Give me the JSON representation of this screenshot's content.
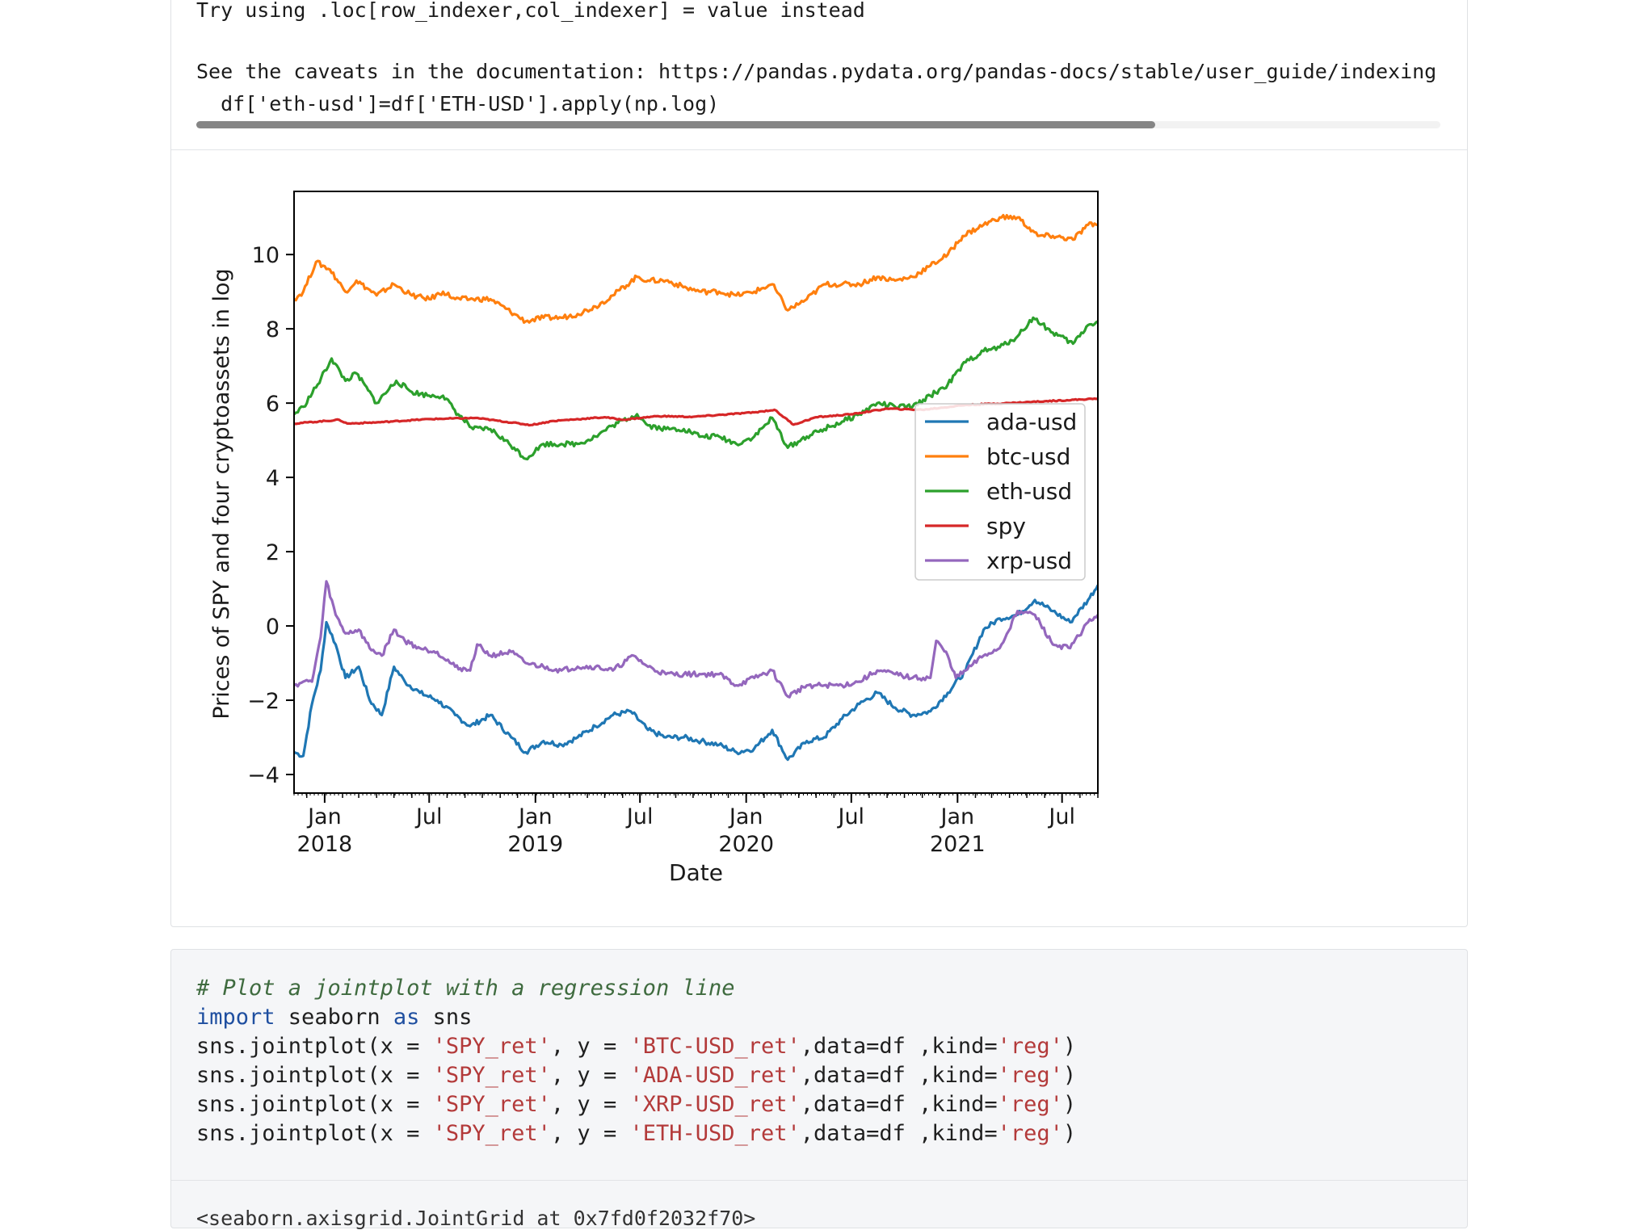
{
  "warning": {
    "line1": "Try using .loc[row_indexer,col_indexer] = value instead",
    "line2": "See the caveats in the documentation: https://pandas.pydata.org/pandas-docs/stable/user_guide/indexing.html",
    "line3": "  df['eth-usd']=df['ETH-USD'].apply(np.log)"
  },
  "chart_data": {
    "type": "line",
    "title": "",
    "xlabel": "Date",
    "ylabel": "Prices of SPY and four cryptoassets in log",
    "xlim": [
      "2017-11-09",
      "2021-09-01"
    ],
    "ylim": [
      -4.5,
      11.7
    ],
    "yticks": [
      -4,
      -2,
      0,
      2,
      4,
      6,
      8,
      10
    ],
    "xticks": [
      {
        "date": "2018-01-01",
        "label": "Jan",
        "sub": "2018"
      },
      {
        "date": "2018-07-01",
        "label": "Jul",
        "sub": ""
      },
      {
        "date": "2019-01-01",
        "label": "Jan",
        "sub": "2019"
      },
      {
        "date": "2019-07-01",
        "label": "Jul",
        "sub": ""
      },
      {
        "date": "2020-01-01",
        "label": "Jan",
        "sub": "2020"
      },
      {
        "date": "2020-07-01",
        "label": "Jul",
        "sub": ""
      },
      {
        "date": "2021-01-01",
        "label": "Jan",
        "sub": "2021"
      },
      {
        "date": "2021-07-01",
        "label": "Jul",
        "sub": ""
      }
    ],
    "legend_position": "center-right",
    "grid": false,
    "series": [
      {
        "name": "ada-usd",
        "color": "#1f77b4",
        "points": [
          [
            "2017-11-09",
            -3.4
          ],
          [
            "2017-11-25",
            -3.5
          ],
          [
            "2017-12-10",
            -2.1
          ],
          [
            "2017-12-25",
            -1.2
          ],
          [
            "2018-01-04",
            0.1
          ],
          [
            "2018-01-20",
            -0.5
          ],
          [
            "2018-02-06",
            -1.4
          ],
          [
            "2018-03-01",
            -1.1
          ],
          [
            "2018-03-20",
            -2.0
          ],
          [
            "2018-04-10",
            -2.4
          ],
          [
            "2018-05-01",
            -1.1
          ],
          [
            "2018-05-20",
            -1.5
          ],
          [
            "2018-06-15",
            -1.8
          ],
          [
            "2018-07-15",
            -2.0
          ],
          [
            "2018-08-15",
            -2.4
          ],
          [
            "2018-09-10",
            -2.7
          ],
          [
            "2018-10-15",
            -2.4
          ],
          [
            "2018-11-20",
            -3.0
          ],
          [
            "2018-12-15",
            -3.4
          ],
          [
            "2019-01-15",
            -3.1
          ],
          [
            "2019-02-15",
            -3.2
          ],
          [
            "2019-03-15",
            -3.0
          ],
          [
            "2019-04-15",
            -2.7
          ],
          [
            "2019-05-15",
            -2.4
          ],
          [
            "2019-06-15",
            -2.3
          ],
          [
            "2019-07-15",
            -2.8
          ],
          [
            "2019-08-15",
            -3.0
          ],
          [
            "2019-09-15",
            -3.0
          ],
          [
            "2019-10-15",
            -3.1
          ],
          [
            "2019-11-15",
            -3.2
          ],
          [
            "2019-12-15",
            -3.4
          ],
          [
            "2020-01-15",
            -3.3
          ],
          [
            "2020-02-15",
            -2.8
          ],
          [
            "2020-03-13",
            -3.6
          ],
          [
            "2020-04-15",
            -3.1
          ],
          [
            "2020-05-15",
            -3.0
          ],
          [
            "2020-06-15",
            -2.5
          ],
          [
            "2020-07-15",
            -2.1
          ],
          [
            "2020-08-15",
            -1.8
          ],
          [
            "2020-09-15",
            -2.2
          ],
          [
            "2020-10-15",
            -2.4
          ],
          [
            "2020-11-15",
            -2.3
          ],
          [
            "2020-12-15",
            -1.8
          ],
          [
            "2021-01-15",
            -1.2
          ],
          [
            "2021-02-15",
            -0.1
          ],
          [
            "2021-03-15",
            0.2
          ],
          [
            "2021-04-15",
            0.3
          ],
          [
            "2021-05-15",
            0.7
          ],
          [
            "2021-06-15",
            0.4
          ],
          [
            "2021-07-15",
            0.1
          ],
          [
            "2021-08-15",
            0.7
          ],
          [
            "2021-09-01",
            1.1
          ]
        ]
      },
      {
        "name": "btc-usd",
        "color": "#ff7f0e",
        "points": [
          [
            "2017-11-09",
            8.8
          ],
          [
            "2017-11-25",
            9.0
          ],
          [
            "2017-12-17",
            9.8
          ],
          [
            "2018-01-10",
            9.6
          ],
          [
            "2018-02-06",
            9.0
          ],
          [
            "2018-02-25",
            9.3
          ],
          [
            "2018-04-01",
            8.9
          ],
          [
            "2018-05-01",
            9.2
          ],
          [
            "2018-06-01",
            8.9
          ],
          [
            "2018-07-01",
            8.8
          ],
          [
            "2018-07-25",
            9.0
          ],
          [
            "2018-08-15",
            8.8
          ],
          [
            "2018-09-15",
            8.8
          ],
          [
            "2018-10-15",
            8.8
          ],
          [
            "2018-11-25",
            8.4
          ],
          [
            "2018-12-15",
            8.2
          ],
          [
            "2019-01-15",
            8.3
          ],
          [
            "2019-02-15",
            8.3
          ],
          [
            "2019-03-15",
            8.4
          ],
          [
            "2019-04-15",
            8.6
          ],
          [
            "2019-05-15",
            8.9
          ],
          [
            "2019-06-26",
            9.4
          ],
          [
            "2019-07-15",
            9.3
          ],
          [
            "2019-08-15",
            9.3
          ],
          [
            "2019-09-20",
            9.1
          ],
          [
            "2019-10-15",
            9.0
          ],
          [
            "2019-11-15",
            9.0
          ],
          [
            "2019-12-15",
            8.9
          ],
          [
            "2020-01-15",
            9.0
          ],
          [
            "2020-02-15",
            9.2
          ],
          [
            "2020-03-13",
            8.5
          ],
          [
            "2020-04-15",
            8.8
          ],
          [
            "2020-05-15",
            9.2
          ],
          [
            "2020-06-15",
            9.2
          ],
          [
            "2020-07-15",
            9.2
          ],
          [
            "2020-08-15",
            9.4
          ],
          [
            "2020-09-15",
            9.3
          ],
          [
            "2020-10-15",
            9.4
          ],
          [
            "2020-11-15",
            9.7
          ],
          [
            "2020-12-15",
            10.0
          ],
          [
            "2021-01-10",
            10.5
          ],
          [
            "2021-02-15",
            10.8
          ],
          [
            "2021-03-15",
            11.0
          ],
          [
            "2021-04-15",
            11.0
          ],
          [
            "2021-05-20",
            10.5
          ],
          [
            "2021-06-15",
            10.5
          ],
          [
            "2021-07-20",
            10.4
          ],
          [
            "2021-08-15",
            10.8
          ],
          [
            "2021-09-01",
            10.8
          ]
        ]
      },
      {
        "name": "eth-usd",
        "color": "#2ca02c",
        "points": [
          [
            "2017-11-09",
            5.7
          ],
          [
            "2017-11-25",
            5.9
          ],
          [
            "2017-12-20",
            6.5
          ],
          [
            "2018-01-13",
            7.2
          ],
          [
            "2018-02-06",
            6.6
          ],
          [
            "2018-02-25",
            6.8
          ],
          [
            "2018-04-01",
            6.0
          ],
          [
            "2018-05-05",
            6.6
          ],
          [
            "2018-06-01",
            6.3
          ],
          [
            "2018-07-01",
            6.2
          ],
          [
            "2018-07-25",
            6.2
          ],
          [
            "2018-08-20",
            5.7
          ],
          [
            "2018-09-15",
            5.3
          ],
          [
            "2018-10-15",
            5.3
          ],
          [
            "2018-11-25",
            4.8
          ],
          [
            "2018-12-15",
            4.5
          ],
          [
            "2019-01-15",
            4.9
          ],
          [
            "2019-02-15",
            4.9
          ],
          [
            "2019-03-15",
            4.9
          ],
          [
            "2019-04-15",
            5.1
          ],
          [
            "2019-05-15",
            5.4
          ],
          [
            "2019-06-26",
            5.7
          ],
          [
            "2019-07-15",
            5.4
          ],
          [
            "2019-08-15",
            5.3
          ],
          [
            "2019-09-15",
            5.3
          ],
          [
            "2019-10-15",
            5.1
          ],
          [
            "2019-11-15",
            5.1
          ],
          [
            "2019-12-15",
            4.9
          ],
          [
            "2020-01-15",
            5.1
          ],
          [
            "2020-02-15",
            5.6
          ],
          [
            "2020-03-13",
            4.8
          ],
          [
            "2020-04-15",
            5.1
          ],
          [
            "2020-05-15",
            5.3
          ],
          [
            "2020-06-15",
            5.5
          ],
          [
            "2020-07-15",
            5.7
          ],
          [
            "2020-08-15",
            6.0
          ],
          [
            "2020-09-15",
            5.9
          ],
          [
            "2020-10-15",
            5.9
          ],
          [
            "2020-11-15",
            6.2
          ],
          [
            "2020-12-15",
            6.5
          ],
          [
            "2021-01-15",
            7.1
          ],
          [
            "2021-02-15",
            7.4
          ],
          [
            "2021-03-15",
            7.5
          ],
          [
            "2021-04-15",
            7.8
          ],
          [
            "2021-05-12",
            8.3
          ],
          [
            "2021-06-15",
            7.9
          ],
          [
            "2021-07-20",
            7.6
          ],
          [
            "2021-08-15",
            8.1
          ],
          [
            "2021-09-01",
            8.2
          ]
        ]
      },
      {
        "name": "spy",
        "color": "#d62728",
        "points": [
          [
            "2017-11-09",
            5.45
          ],
          [
            "2018-01-26",
            5.55
          ],
          [
            "2018-02-09",
            5.45
          ],
          [
            "2018-04-01",
            5.48
          ],
          [
            "2018-07-01",
            5.57
          ],
          [
            "2018-09-20",
            5.6
          ],
          [
            "2018-12-24",
            5.41
          ],
          [
            "2019-02-01",
            5.52
          ],
          [
            "2019-05-01",
            5.62
          ],
          [
            "2019-06-01",
            5.55
          ],
          [
            "2019-08-01",
            5.65
          ],
          [
            "2019-10-01",
            5.63
          ],
          [
            "2020-01-15",
            5.75
          ],
          [
            "2020-02-19",
            5.82
          ],
          [
            "2020-03-23",
            5.42
          ],
          [
            "2020-05-01",
            5.62
          ],
          [
            "2020-07-01",
            5.7
          ],
          [
            "2020-09-01",
            5.85
          ],
          [
            "2020-11-01",
            5.82
          ],
          [
            "2021-01-15",
            5.95
          ],
          [
            "2021-04-01",
            6.0
          ],
          [
            "2021-06-01",
            6.05
          ],
          [
            "2021-09-01",
            6.12
          ]
        ]
      },
      {
        "name": "xrp-usd",
        "color": "#9467bd",
        "points": [
          [
            "2017-11-09",
            -1.6
          ],
          [
            "2017-11-25",
            -1.5
          ],
          [
            "2017-12-10",
            -1.5
          ],
          [
            "2017-12-25",
            -0.3
          ],
          [
            "2018-01-04",
            1.2
          ],
          [
            "2018-01-20",
            0.3
          ],
          [
            "2018-02-06",
            -0.2
          ],
          [
            "2018-03-01",
            -0.1
          ],
          [
            "2018-03-20",
            -0.6
          ],
          [
            "2018-04-10",
            -0.8
          ],
          [
            "2018-05-01",
            -0.1
          ],
          [
            "2018-05-20",
            -0.4
          ],
          [
            "2018-06-15",
            -0.6
          ],
          [
            "2018-07-15",
            -0.7
          ],
          [
            "2018-08-15",
            -1.1
          ],
          [
            "2018-09-10",
            -1.2
          ],
          [
            "2018-09-22",
            -0.5
          ],
          [
            "2018-10-15",
            -0.8
          ],
          [
            "2018-11-20",
            -0.7
          ],
          [
            "2018-12-15",
            -1.0
          ],
          [
            "2019-01-15",
            -1.1
          ],
          [
            "2019-02-15",
            -1.2
          ],
          [
            "2019-03-15",
            -1.1
          ],
          [
            "2019-04-15",
            -1.1
          ],
          [
            "2019-05-15",
            -1.2
          ],
          [
            "2019-06-20",
            -0.8
          ],
          [
            "2019-07-15",
            -1.1
          ],
          [
            "2019-08-15",
            -1.3
          ],
          [
            "2019-09-15",
            -1.3
          ],
          [
            "2019-10-15",
            -1.3
          ],
          [
            "2019-11-15",
            -1.3
          ],
          [
            "2019-12-15",
            -1.6
          ],
          [
            "2020-01-15",
            -1.4
          ],
          [
            "2020-02-15",
            -1.2
          ],
          [
            "2020-03-13",
            -1.9
          ],
          [
            "2020-04-15",
            -1.6
          ],
          [
            "2020-05-15",
            -1.6
          ],
          [
            "2020-06-15",
            -1.6
          ],
          [
            "2020-07-15",
            -1.5
          ],
          [
            "2020-08-15",
            -1.2
          ],
          [
            "2020-09-15",
            -1.3
          ],
          [
            "2020-10-15",
            -1.4
          ],
          [
            "2020-11-15",
            -1.4
          ],
          [
            "2020-11-25",
            -0.4
          ],
          [
            "2020-12-15",
            -0.8
          ],
          [
            "2020-12-29",
            -1.4
          ],
          [
            "2021-01-15",
            -1.2
          ],
          [
            "2021-02-15",
            -0.8
          ],
          [
            "2021-03-15",
            -0.6
          ],
          [
            "2021-04-15",
            0.4
          ],
          [
            "2021-05-15",
            0.3
          ],
          [
            "2021-06-15",
            -0.5
          ],
          [
            "2021-07-15",
            -0.6
          ],
          [
            "2021-08-15",
            0.1
          ],
          [
            "2021-09-01",
            0.3
          ]
        ]
      }
    ]
  },
  "code": {
    "comment": "# Plot a jointplot with a regression line",
    "import_kw": "import",
    "import_mod": " seaborn ",
    "as_kw": "as",
    "import_alias": " sns",
    "lines": [
      {
        "pre": "sns.jointplot(x = ",
        "x": "'SPY_ret'",
        "mid": ", y = ",
        "y": "'BTC-USD_ret'",
        "post": ",data=df ,kind=",
        "kind": "'reg'",
        "end": ")"
      },
      {
        "pre": "sns.jointplot(x = ",
        "x": "'SPY_ret'",
        "mid": ", y = ",
        "y": "'ADA-USD_ret'",
        "post": ",data=df ,kind=",
        "kind": "'reg'",
        "end": ")"
      },
      {
        "pre": "sns.jointplot(x = ",
        "x": "'SPY_ret'",
        "mid": ", y = ",
        "y": "'XRP-USD_ret'",
        "post": ",data=df ,kind=",
        "kind": "'reg'",
        "end": ")"
      },
      {
        "pre": "sns.jointplot(x = ",
        "x": "'SPY_ret'",
        "mid": ", y = ",
        "y": "'ETH-USD_ret'",
        "post": ",data=df ,kind=",
        "kind": "'reg'",
        "end": ")"
      }
    ]
  },
  "output_tail": "<seaborn.axisgrid.JointGrid at 0x7fd0f2032f70>"
}
